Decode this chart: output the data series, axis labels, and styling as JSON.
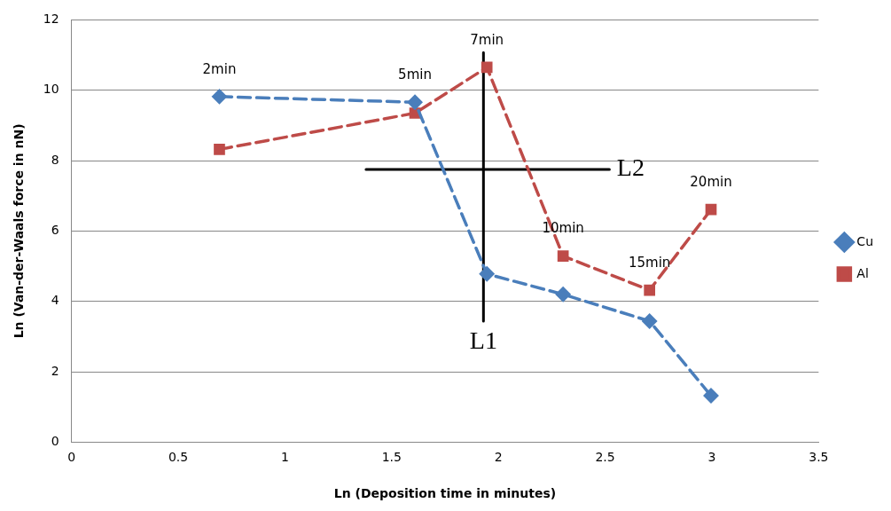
{
  "chart_data": {
    "type": "line",
    "xlabel": "Ln (Deposition time in minutes)",
    "ylabel": "Ln (Van-der-Waals force in nN)",
    "x": [
      0.693,
      1.609,
      1.946,
      2.303,
      2.708,
      2.996
    ],
    "xlim": [
      0,
      3.5
    ],
    "xticks": [
      0,
      0.5,
      1,
      1.5,
      2,
      2.5,
      3,
      3.5
    ],
    "ylim": [
      0,
      12
    ],
    "yticks": [
      0,
      2,
      4,
      6,
      8,
      10,
      12
    ],
    "grid": "y",
    "legend": "right",
    "series": [
      {
        "name": "Cu",
        "color": "#4a7ebb",
        "values": [
          9.82,
          9.66,
          4.78,
          4.2,
          3.44,
          1.32
        ],
        "marker": "diamond",
        "line_style": "dashed"
      },
      {
        "name": "Al",
        "color": "#be4b48",
        "values": [
          8.32,
          9.35,
          10.65,
          5.29,
          4.32,
          6.61
        ],
        "marker": "square",
        "line_style": "dashed"
      },
      {
        "color": "#000000",
        "x": [
          1.93,
          1.93
        ],
        "values": [
          11.07,
          3.44
        ],
        "marker": "none",
        "line_style": "solid"
      },
      {
        "color": "#000000",
        "x": [
          1.38,
          2.52
        ],
        "values": [
          7.75,
          7.75
        ],
        "marker": "none",
        "line_style": "solid"
      }
    ],
    "annotations": [
      {
        "text": "2min",
        "x": 0.693,
        "y": 9.82
      },
      {
        "text": "5min",
        "x": 1.609,
        "y": 9.66
      },
      {
        "text": "7min",
        "x": 1.946,
        "y": 10.65
      },
      {
        "text": "10min",
        "x": 2.303,
        "y": 5.29
      },
      {
        "text": "15min",
        "x": 2.708,
        "y": 4.32
      },
      {
        "text": "20min",
        "x": 2.996,
        "y": 6.61
      },
      {
        "text": "L2",
        "x": 2.52,
        "y": 7.75
      },
      {
        "text": "L1",
        "x": 1.93,
        "y": 3.44
      }
    ]
  }
}
